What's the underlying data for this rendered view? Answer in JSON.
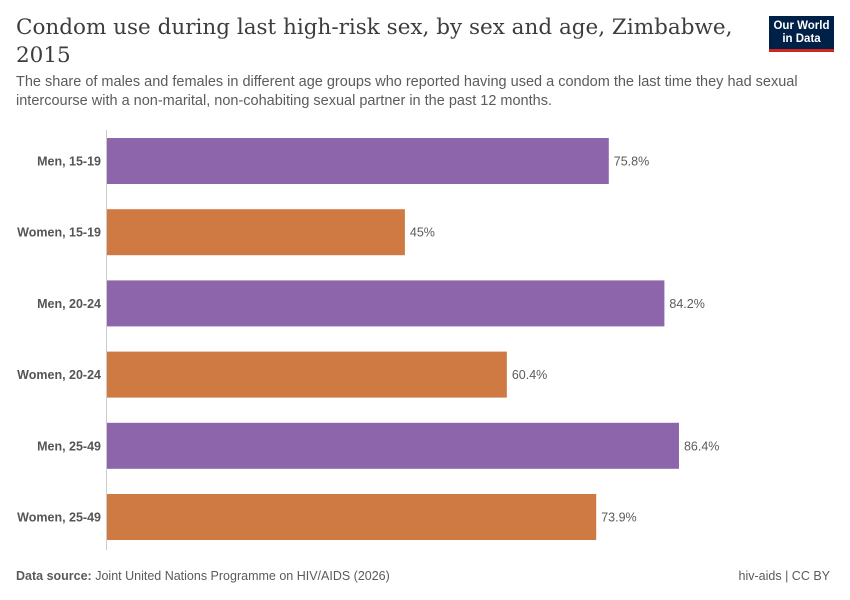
{
  "header": {
    "title": "Condom use during last high-risk sex, by sex and age, Zimbabwe, 2015",
    "subtitle": "The share of males and females in different age groups who reported having used a condom the last time they had sexual intercourse with a non-marital, non-cohabiting sexual partner in the past 12 months."
  },
  "logo": {
    "line1": "Our World",
    "line2": "in Data"
  },
  "footer": {
    "source_label": "Data source:",
    "source_text": "Joint United Nations Programme on HIV/AIDS (2026)",
    "right_text": "hiv-aids | CC BY"
  },
  "colors": {
    "men": "#8c65aa",
    "women": "#cf7a43"
  },
  "chart_data": {
    "type": "bar",
    "orientation": "horizontal",
    "categories": [
      "Men, 15-19",
      "Women, 15-19",
      "Men, 20-24",
      "Women, 20-24",
      "Men, 25-49",
      "Women, 25-49"
    ],
    "values": [
      75.8,
      45,
      84.2,
      60.4,
      86.4,
      73.9
    ],
    "value_labels": [
      "75.8%",
      "45%",
      "84.2%",
      "60.4%",
      "86.4%",
      "73.9%"
    ],
    "groups": [
      "men",
      "women",
      "men",
      "women",
      "men",
      "women"
    ],
    "xlim": [
      0,
      100
    ],
    "grid": false,
    "legend": "none"
  }
}
